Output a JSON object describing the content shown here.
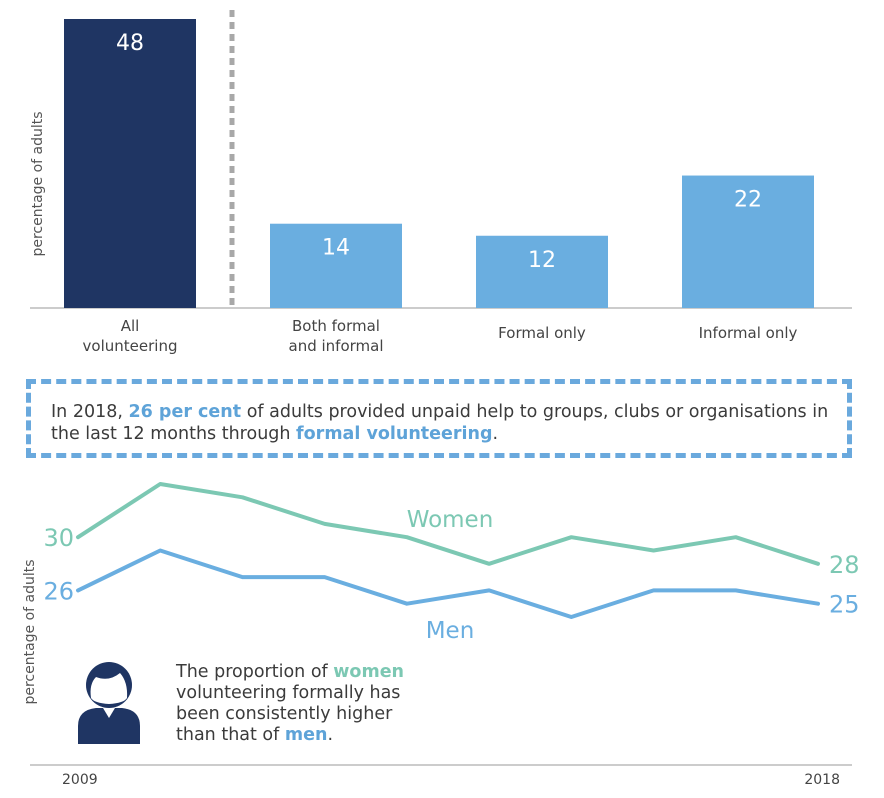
{
  "chart_data": [
    {
      "type": "bar",
      "ylabel": "percentage of adults",
      "categories": [
        [
          "All",
          "volunteering"
        ],
        [
          "Both formal",
          "and informal"
        ],
        [
          "Formal only"
        ],
        [
          "Informal only"
        ]
      ],
      "values": [
        48,
        14,
        12,
        22
      ],
      "colors": [
        "#1f3563",
        "#6aaee0",
        "#6aaee0",
        "#6aaee0"
      ],
      "ylim": [
        0,
        48
      ],
      "divider": "dashed line after first bar",
      "grid": false
    },
    {
      "type": "line",
      "ylabel": "percentage of adults",
      "x_start_label": "2009",
      "x_end_label": "2018",
      "x": [
        2009,
        2010,
        2011,
        2012,
        2013,
        2014,
        2015,
        2016,
        2017,
        2018
      ],
      "series": [
        {
          "name": "Women",
          "color": "#7cc8b3",
          "start_label": "30",
          "end_label": "28",
          "values": [
            30,
            34,
            33,
            31,
            30,
            28,
            30,
            29,
            30,
            28
          ]
        },
        {
          "name": "Men",
          "color": "#6aaee0",
          "start_label": "26",
          "end_label": "25",
          "values": [
            26,
            29,
            27,
            27,
            25,
            26,
            24,
            26,
            26,
            25
          ]
        }
      ],
      "ylim": [
        22,
        35
      ],
      "grid": false
    }
  ],
  "callout": {
    "pre": "In 2018, ",
    "highlight1": "26 per cent",
    "mid": " of adults provided unpaid help to groups, clubs or organisations in the last 12 months through ",
    "highlight2": "formal volunteering",
    "post": "."
  },
  "note": {
    "pre": "The proportion of ",
    "highlight_women": "women",
    "mid": " volunteering formally has been consistently higher than that of ",
    "highlight_men": "men",
    "post": "."
  },
  "icon": "person-icon"
}
